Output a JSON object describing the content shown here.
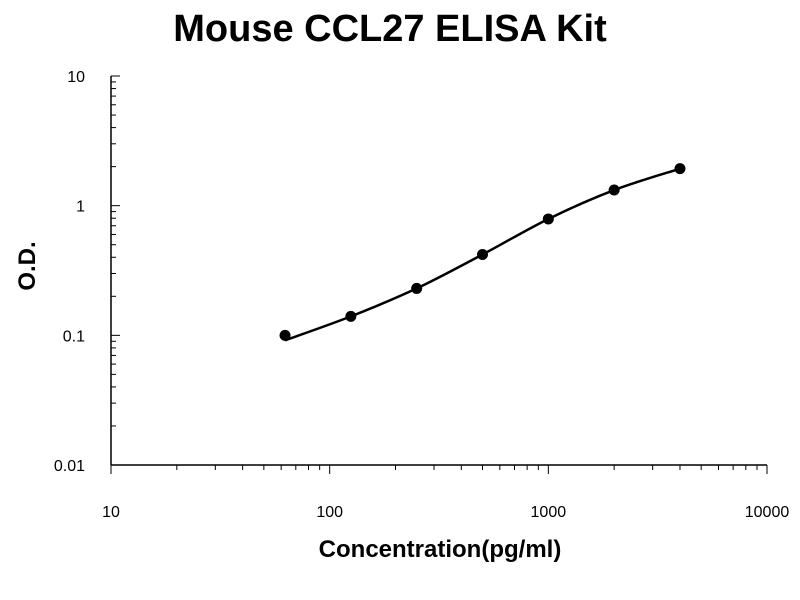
{
  "chart_data": {
    "type": "scatter",
    "title": "Mouse CCL27 ELISA Kit",
    "xlabel": "Concentration(pg/ml)",
    "ylabel": "O.D.",
    "xscale": "log",
    "yscale": "log",
    "xlim": [
      10,
      10000
    ],
    "ylim": [
      0.01,
      10
    ],
    "x_ticks": [
      10,
      100,
      1000,
      10000
    ],
    "x_tick_labels": [
      "10",
      "100",
      "1000",
      "10000"
    ],
    "y_ticks": [
      0.01,
      0.1,
      1,
      10
    ],
    "y_tick_labels": [
      "0.01",
      "0.1",
      "1",
      "10"
    ],
    "grid": false,
    "legend": "none",
    "series": [
      {
        "x": [
          62.5,
          125,
          250,
          500,
          1000,
          2000,
          4000
        ],
        "y": [
          0.1,
          0.14,
          0.23,
          0.42,
          0.79,
          1.32,
          1.93
        ],
        "marker": "circle",
        "fit_curve": true,
        "color": "#000000"
      }
    ]
  }
}
